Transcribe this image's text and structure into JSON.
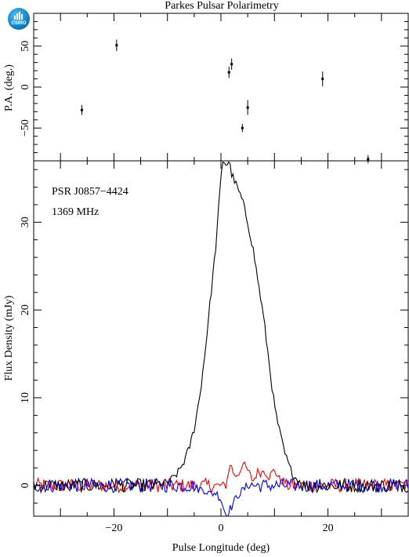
{
  "logo": {
    "text": "CSIRO"
  },
  "colors": {
    "I": "#000000",
    "L": "#ff0000",
    "V": "#0000ff",
    "frame": "#000000"
  },
  "chart_data": [
    {
      "type": "scatter",
      "title": "Parkes Pulsar Polarimetry",
      "ylabel": "P.A. (deg.)",
      "xlim": [
        -35,
        35
      ],
      "ylim": [
        -90,
        90
      ],
      "yticks": [
        -50,
        0,
        50
      ],
      "points": [
        {
          "x": -26,
          "y": -28,
          "err": 6
        },
        {
          "x": -19.5,
          "y": 51,
          "err": 7
        },
        {
          "x": 1.5,
          "y": 18,
          "err": 7
        },
        {
          "x": 2,
          "y": 28,
          "err": 7
        },
        {
          "x": 4,
          "y": -50,
          "err": 5
        },
        {
          "x": 5,
          "y": -25,
          "err": 9
        },
        {
          "x": 19,
          "y": 10,
          "err": 9
        },
        {
          "x": 27.5,
          "y": -88,
          "err": 5
        }
      ]
    },
    {
      "type": "line",
      "annotations": [
        "PSR J0857−4424",
        "1369 MHz"
      ],
      "xlabel": "Pulse Longitude (deg)",
      "ylabel": "Flux Density (mJy)",
      "xlim": [
        -35,
        35
      ],
      "ylim": [
        -3.5,
        37
      ],
      "xticks": [
        -20,
        0,
        20
      ],
      "yticks": [
        0,
        10,
        20,
        30
      ],
      "series": [
        {
          "key": "I",
          "points": [
            [
              -12,
              0.2
            ],
            [
              -10,
              0.3
            ],
            [
              -9,
              0.8
            ],
            [
              -8,
              1.5
            ],
            [
              -7,
              2.6
            ],
            [
              -6,
              4.1
            ],
            [
              -5,
              6.5
            ],
            [
              -4,
              10
            ],
            [
              -3,
              15
            ],
            [
              -2,
              21
            ],
            [
              -1,
              27
            ],
            [
              0,
              35
            ],
            [
              0.4,
              37.2
            ],
            [
              1,
              36.5
            ],
            [
              1.5,
              37
            ],
            [
              2,
              35.5
            ],
            [
              3,
              34
            ],
            [
              4,
              32.5
            ],
            [
              5,
              30
            ],
            [
              6,
              27
            ],
            [
              7,
              23
            ],
            [
              8,
              19
            ],
            [
              9,
              14
            ],
            [
              10,
              9
            ],
            [
              11,
              6
            ],
            [
              12,
              3.5
            ],
            [
              13,
              1.8
            ],
            [
              14,
              0.8
            ],
            [
              15,
              0.4
            ]
          ]
        },
        {
          "key": "L",
          "points": [
            [
              -1,
              0
            ],
            [
              1,
              0
            ],
            [
              1.5,
              2
            ],
            [
              2,
              2.3
            ],
            [
              2.5,
              1
            ],
            [
              3.5,
              1.5
            ],
            [
              4,
              2.6
            ],
            [
              5,
              1.7
            ],
            [
              6,
              0.5
            ],
            [
              7,
              1.7
            ],
            [
              7.5,
              1.4
            ],
            [
              8,
              1.8
            ],
            [
              9,
              1
            ],
            [
              10,
              1.8
            ],
            [
              11,
              0.6
            ],
            [
              12,
              0.4
            ]
          ]
        },
        {
          "key": "V",
          "points": [
            [
              -5,
              -0.3
            ],
            [
              -3,
              -0.5
            ],
            [
              -2,
              -1
            ],
            [
              -1,
              -0.8
            ],
            [
              0,
              -1.5
            ],
            [
              0.5,
              -2.6
            ],
            [
              1,
              -3.4
            ],
            [
              1.5,
              -2.8
            ],
            [
              2,
              -2.4
            ],
            [
              3,
              -1.2
            ],
            [
              4,
              -0.6
            ],
            [
              5,
              0
            ],
            [
              6,
              0.2
            ]
          ]
        }
      ]
    }
  ]
}
